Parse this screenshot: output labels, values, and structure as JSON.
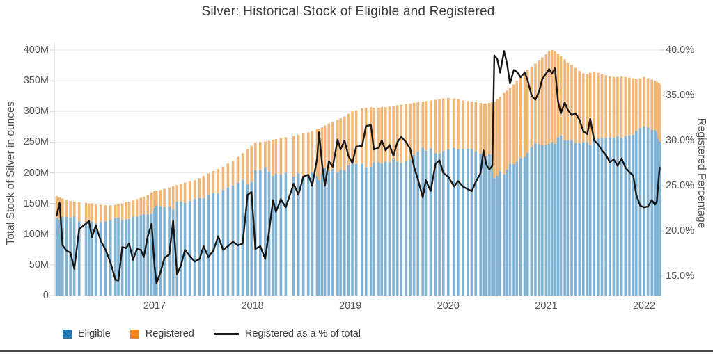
{
  "page": {
    "title": "Silver: Historical Stock of Eligible and Registered",
    "background": "#ffffff",
    "divider_color": "#474747"
  },
  "colors": {
    "eligible_bar": "#7fb2d3",
    "registered_bar": "#f1b778",
    "eligible_legend": "#2077b4",
    "registered_legend": "#f5861f",
    "pct_line": "#161616",
    "grid": "#ececec",
    "axis_line": "#d4d4d4",
    "tick_text": "#555555",
    "title_text": "#3d3d3d"
  },
  "legend": {
    "items": [
      {
        "label": "Eligible",
        "swatch": "square",
        "color": "#2077b4"
      },
      {
        "label": "Registered",
        "swatch": "square",
        "color": "#f5861f"
      },
      {
        "label": "Registered as a % of total",
        "swatch": "line",
        "color": "#161616"
      }
    ]
  },
  "chart_data": {
    "type": "bar",
    "subtype": "stacked-bars-with-line-overlay",
    "title": "Silver: Historical Stock of Eligible and Registered",
    "xlabel": "",
    "ylabel": "Total Stock of Silver in ounces",
    "y2label": "Registered Percentage",
    "grid": true,
    "legend_position": "bottom-left",
    "left_axis": {
      "title": "Total Stock of Silver in ounces",
      "tick_labels": [
        "0",
        "50M",
        "100M",
        "150M",
        "200M",
        "250M",
        "300M",
        "350M",
        "400M"
      ],
      "tick_values": [
        0,
        50,
        100,
        150,
        200,
        250,
        300,
        350,
        400
      ],
      "units": "million ounces",
      "range": [
        0,
        400
      ]
    },
    "right_axis": {
      "title": "Registered Percentage",
      "tick_labels": [
        "15.0%",
        "20.0%",
        "25.0%",
        "30.0%",
        "35.0%",
        "40.0%"
      ],
      "tick_values": [
        15,
        20,
        25,
        30,
        35,
        40
      ],
      "range": [
        13.5,
        40.6
      ]
    },
    "x_axis": {
      "tick_labels": [
        "2017",
        "2018",
        "2019",
        "2020",
        "2021",
        "2022"
      ],
      "tick_values": [
        2017,
        2018,
        2019,
        2020,
        2021,
        2022
      ],
      "range": [
        2015.97,
        2022.18
      ]
    },
    "x": [
      2016.0,
      2016.03,
      2016.06,
      2016.1,
      2016.14,
      2016.18,
      2016.23,
      2016.3,
      2016.33,
      2016.36,
      2016.4,
      2016.45,
      2016.5,
      2016.55,
      2016.6,
      2016.63,
      2016.67,
      2016.71,
      2016.74,
      2016.78,
      2016.82,
      2016.86,
      2016.89,
      2016.93,
      2016.97,
      2017.0,
      2017.02,
      2017.06,
      2017.1,
      2017.15,
      2017.19,
      2017.23,
      2017.27,
      2017.31,
      2017.36,
      2017.41,
      2017.46,
      2017.5,
      2017.55,
      2017.6,
      2017.65,
      2017.7,
      2017.75,
      2017.8,
      2017.85,
      2017.9,
      2017.95,
      2017.99,
      2018.03,
      2018.08,
      2018.13,
      2018.17,
      2018.21,
      2018.24,
      2018.29,
      2018.34,
      2018.42,
      2018.47,
      2018.52,
      2018.57,
      2018.61,
      2018.66,
      2018.68,
      2018.71,
      2018.74,
      2018.78,
      2018.82,
      2018.87,
      2018.9,
      2018.94,
      2018.98,
      2019.02,
      2019.06,
      2019.12,
      2019.16,
      2019.21,
      2019.24,
      2019.29,
      2019.32,
      2019.36,
      2019.4,
      2019.44,
      2019.48,
      2019.52,
      2019.57,
      2019.61,
      2019.65,
      2019.69,
      2019.74,
      2019.77,
      2019.82,
      2019.87,
      2019.91,
      2019.95,
      2020.0,
      2020.06,
      2020.1,
      2020.15,
      2020.2,
      2020.24,
      2020.28,
      2020.33,
      2020.36,
      2020.39,
      2020.42,
      2020.45,
      2020.47,
      2020.5,
      2020.53,
      2020.57,
      2020.6,
      2020.63,
      2020.67,
      2020.7,
      2020.74,
      2020.78,
      2020.81,
      2020.85,
      2020.89,
      2020.93,
      2020.96,
      2021.0,
      2021.03,
      2021.06,
      2021.09,
      2021.12,
      2021.15,
      2021.19,
      2021.22,
      2021.26,
      2021.3,
      2021.34,
      2021.38,
      2021.42,
      2021.45,
      2021.49,
      2021.53,
      2021.57,
      2021.61,
      2021.65,
      2021.69,
      2021.73,
      2021.77,
      2021.81,
      2021.85,
      2021.89,
      2021.92,
      2021.96,
      2022.0,
      2022.04,
      2022.08,
      2022.11,
      2022.13,
      2022.15,
      2022.16
    ],
    "series": [
      {
        "name": "Eligible",
        "axis": "left",
        "render": "stacked-bar",
        "units": "M oz",
        "values": [
          127,
          123,
          129,
          128,
          127,
          129,
          121,
          120,
          118,
          121,
          118,
          120,
          121,
          123,
          126,
          127,
          123,
          124,
          125,
          129,
          129,
          131,
          133,
          132,
          133,
          143,
          147,
          146,
          144,
          145,
          140,
          153,
          153,
          151,
          154,
          157,
          159,
          159,
          165,
          167,
          166,
          172,
          176,
          179,
          184,
          189,
          181,
          185,
          204,
          204,
          209,
          202,
          195,
          199,
          197,
          200,
          194,
          199,
          195,
          196,
          201,
          195,
          188,
          199,
          208,
          202,
          206,
          200,
          205,
          204,
          212,
          218,
          214,
          215,
          209,
          210,
          217,
          217,
          215,
          218,
          217,
          222,
          218,
          216,
          219,
          222,
          229,
          234,
          241,
          236,
          240,
          232,
          231,
          236,
          238,
          241,
          238,
          239,
          239,
          239,
          235,
          231,
          223,
          228,
          230,
          229,
          191,
          195,
          203,
          198,
          205,
          215,
          214,
          218,
          224,
          226,
          233,
          242,
          248,
          247,
          245,
          246,
          247,
          250,
          247,
          258,
          261,
          253,
          253,
          253,
          249,
          248,
          250,
          250,
          245,
          255,
          256,
          257,
          257,
          258,
          257,
          259,
          257,
          260,
          261,
          262,
          268,
          273,
          276,
          274,
          270,
          270,
          267,
          256,
          251
        ]
      },
      {
        "name": "Registered",
        "axis": "left",
        "render": "stacked-bar",
        "units": "M oz",
        "values": [
          35,
          37,
          29,
          28,
          27,
          24,
          31,
          31,
          32,
          29,
          31,
          28,
          26,
          24,
          22,
          22,
          27,
          28,
          28,
          26,
          28,
          28,
          28,
          32,
          35,
          27,
          24,
          26,
          30,
          31,
          38,
          27,
          29,
          33,
          32,
          31,
          32,
          36,
          34,
          36,
          40,
          38,
          39,
          41,
          42,
          43,
          57,
          59,
          45,
          46,
          42,
          50,
          59,
          56,
          60,
          58,
          66,
          63,
          69,
          70,
          67,
          76,
          84,
          75,
          69,
          78,
          77,
          86,
          84,
          88,
          84,
          82,
          88,
          90,
          97,
          97,
          89,
          89,
          92,
          89,
          91,
          87,
          92,
          95,
          93,
          91,
          85,
          81,
          75,
          81,
          78,
          87,
          89,
          85,
          84,
          80,
          82,
          79,
          78,
          77,
          80,
          83,
          90,
          85,
          84,
          86,
          125,
          125,
          121,
          132,
          129,
          123,
          130,
          132,
          132,
          136,
          135,
          131,
          130,
          136,
          143,
          147,
          151,
          150,
          151,
          136,
          129,
          132,
          127,
          123,
          122,
          118,
          112,
          111,
          118,
          109,
          107,
          104,
          102,
          99,
          99,
          97,
          100,
          96,
          94,
          92,
          85,
          81,
          80,
          80,
          82,
          80,
          81,
          90,
          93
        ]
      },
      {
        "name": "Registered as a % of total",
        "axis": "right",
        "render": "line",
        "units": "%",
        "values": [
          21.7,
          23.1,
          18.4,
          17.8,
          17.6,
          15.8,
          20.2,
          20.8,
          21.1,
          19.3,
          20.6,
          18.9,
          17.9,
          16.5,
          14.6,
          14.5,
          18.2,
          18.1,
          18.6,
          16.8,
          18.0,
          17.9,
          17.1,
          19.4,
          20.8,
          16.0,
          14.2,
          15.4,
          17.0,
          17.4,
          21.1,
          15.2,
          16.2,
          17.9,
          17.2,
          16.6,
          16.9,
          18.3,
          17.1,
          17.8,
          19.4,
          17.9,
          18.3,
          18.8,
          18.4,
          18.6,
          24.0,
          24.3,
          18.0,
          18.3,
          16.9,
          20.0,
          23.4,
          22.1,
          23.5,
          22.6,
          25.2,
          24.0,
          26.0,
          26.2,
          25.0,
          28.0,
          30.9,
          27.5,
          25.0,
          27.7,
          27.1,
          30.1,
          29.0,
          30.0,
          28.3,
          27.5,
          29.3,
          29.4,
          31.6,
          31.7,
          29.0,
          29.2,
          30.0,
          28.9,
          29.5,
          28.3,
          29.8,
          30.4,
          29.8,
          29.1,
          27.1,
          25.7,
          23.7,
          25.6,
          24.4,
          27.4,
          27.8,
          26.4,
          26.0,
          24.9,
          25.5,
          24.9,
          24.6,
          24.4,
          25.4,
          26.4,
          28.9,
          27.3,
          26.8,
          27.2,
          39.4,
          39.0,
          37.5,
          39.9,
          38.5,
          36.3,
          37.8,
          37.6,
          37.0,
          37.5,
          36.7,
          35.0,
          34.5,
          35.5,
          36.8,
          37.4,
          37.9,
          37.4,
          38.0,
          34.4,
          33.0,
          34.2,
          33.4,
          32.8,
          33.0,
          32.3,
          31.0,
          30.7,
          32.4,
          30.0,
          29.6,
          28.9,
          28.4,
          27.6,
          27.9,
          27.2,
          28.0,
          27.0,
          26.5,
          26.1,
          24.0,
          22.8,
          22.6,
          22.7,
          23.4,
          22.9,
          23.2,
          25.9,
          27.0
        ]
      }
    ]
  }
}
